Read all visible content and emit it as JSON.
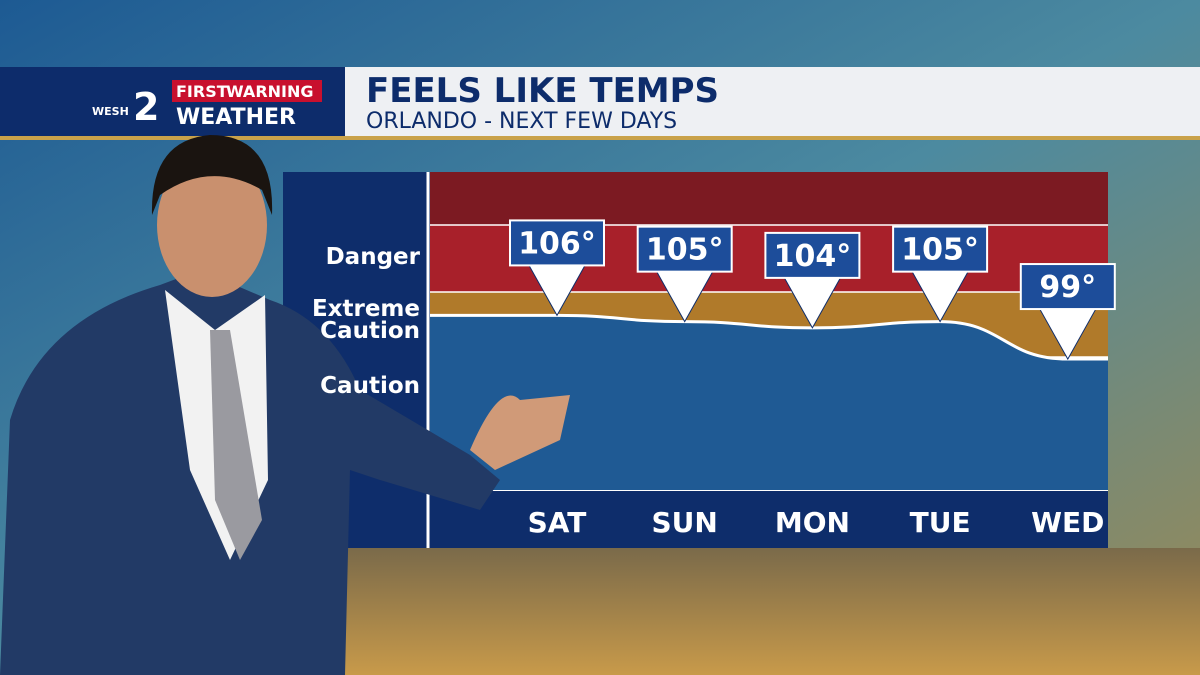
{
  "logo": {
    "station": "WESH",
    "channel": "2",
    "first": "FIRST",
    "warning": "WARNING",
    "weather": "WEATHER"
  },
  "chart_data": {
    "type": "line",
    "title": "FEELS LIKE TEMPS",
    "subtitle": "ORLANDO - NEXT FEW DAYS",
    "zones": [
      "Danger",
      "Extreme Caution",
      "Caution"
    ],
    "categories": [
      "SAT",
      "SUN",
      "MON",
      "TUE",
      "WED"
    ],
    "values": [
      106,
      105,
      104,
      105,
      99
    ],
    "value_labels": [
      "106°",
      "105°",
      "104°",
      "105°",
      "99°"
    ],
    "ylim": [
      78,
      129
    ]
  }
}
